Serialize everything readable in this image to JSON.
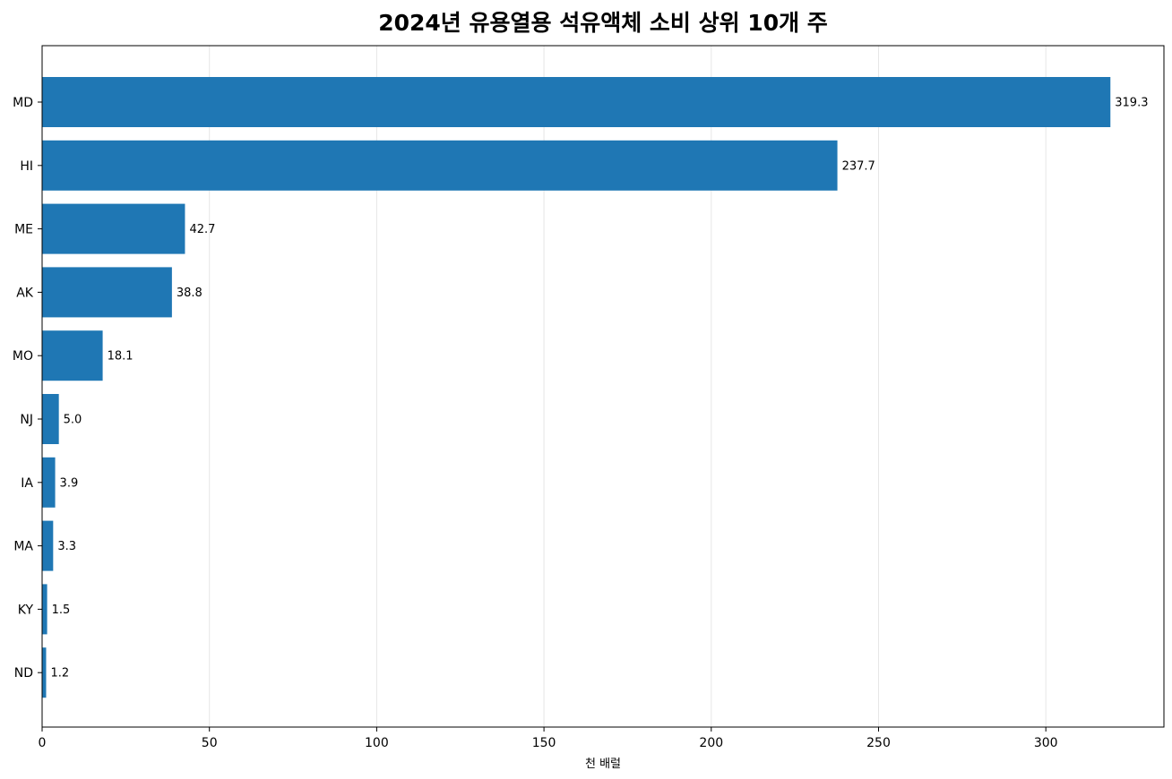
{
  "chart_data": {
    "type": "bar",
    "orientation": "horizontal",
    "title": "2024년 유용열용 석유액체 소비 상위 10개 주",
    "xlabel": "천 배럴",
    "ylabel": "",
    "categories": [
      "MD",
      "HI",
      "ME",
      "AK",
      "MO",
      "NJ",
      "IA",
      "MA",
      "KY",
      "ND"
    ],
    "values": [
      319.3,
      237.7,
      42.7,
      38.8,
      18.1,
      5.0,
      3.9,
      3.3,
      1.5,
      1.2
    ],
    "data_labels": [
      "319.3",
      "237.7",
      "42.7",
      "38.8",
      "18.1",
      "5.0",
      "3.9",
      "3.3",
      "1.5",
      "1.2"
    ],
    "xlim": [
      0,
      335.3
    ],
    "xticks": [
      0,
      50,
      100,
      150,
      200,
      250,
      300
    ],
    "grid": "x",
    "bar_color": "#1f77b4"
  }
}
